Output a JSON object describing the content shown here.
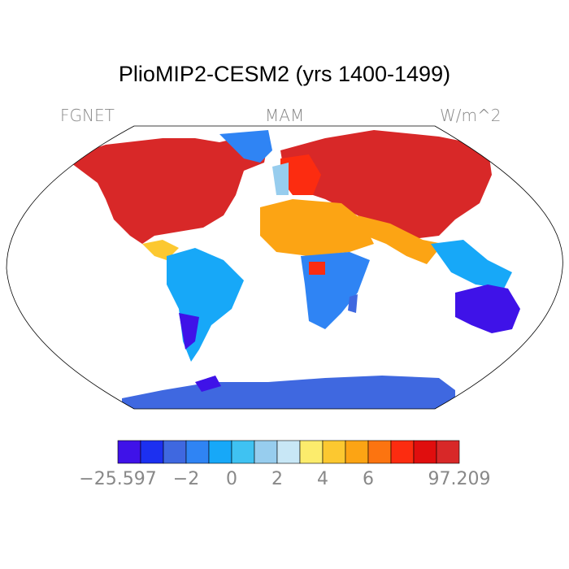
{
  "title": "PlioMIP2-CESM2 (yrs 1400-1499)",
  "labels": {
    "left": "FGNET",
    "center": "MAM",
    "right": "W/m^2"
  },
  "colorbar": {
    "colors": [
      "#3f12e8",
      "#1c30f0",
      "#3f68e0",
      "#2f84f4",
      "#17a8f8",
      "#3fc2f2",
      "#97cdee",
      "#c8e7f6",
      "#fcec6c",
      "#fcc830",
      "#fca414",
      "#fc7410",
      "#fc2c10",
      "#e00e0e",
      "#d82828"
    ],
    "tick_labels": [
      "−25.597",
      "−2",
      "0",
      "2",
      "4",
      "6",
      "97.209"
    ]
  },
  "map_colors": {
    "ocean": "#ffffff",
    "outline": "#000000",
    "hot": "#d82828",
    "warm": "#fc2c10",
    "orange": "#fca414",
    "yellow": "#fcc830",
    "lightblue": "#97cdee",
    "blue": "#3f68e0",
    "midblue": "#2f84f4",
    "cyan": "#17a8f8",
    "violet": "#3f12e8"
  }
}
